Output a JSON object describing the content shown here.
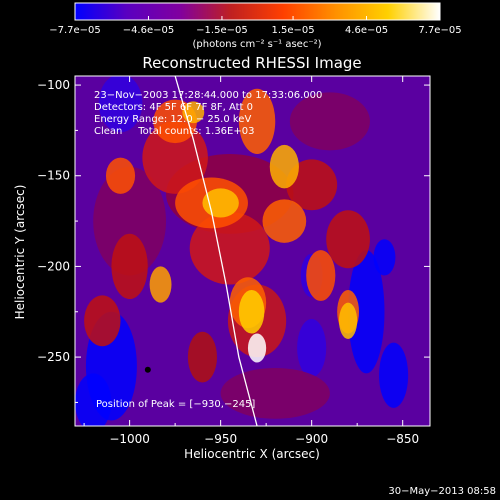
{
  "chart_data": {
    "type": "heatmap",
    "title": "Reconstructed RHESSI Image",
    "xlabel": "Heliocentric X (arcsec)",
    "ylabel": "Heliocentric Y (arcsec)",
    "xlim": [
      -1030,
      -835
    ],
    "ylim": [
      -288,
      -95
    ],
    "x_ticks": [
      -1000,
      -950,
      -900,
      -850
    ],
    "x_tick_labels": [
      "−1000",
      "−950",
      "−900",
      "−850"
    ],
    "y_ticks": [
      -100,
      -150,
      -200,
      -250
    ],
    "y_tick_labels": [
      "−100",
      "−150",
      "−200",
      "−250"
    ],
    "colorbar": {
      "range": [
        -7.7e-05,
        7.7e-05
      ],
      "tick_values": [
        -7.7e-05,
        -4.6e-05,
        -1.5e-05,
        1.5e-05,
        4.6e-05,
        7.7e-05
      ],
      "tick_labels": [
        "−7.7e−05",
        "−4.6e−05",
        "−1.5e−05",
        "1.5e−05",
        "4.6e−05",
        "7.7e−05"
      ],
      "unit_label": "(photons cm⁻² s⁻¹ asec⁻²)",
      "colors": [
        "#0000ff",
        "#5a00c0",
        "#8000a0",
        "#c02020",
        "#ff4000",
        "#ff9000",
        "#ffd000",
        "#ffffff"
      ]
    },
    "annotations": [
      "23−Nov−2003 17:28:44.000 to 17:33:06.000",
      "Detectors: 4F 5F 6F 7F 8F, Att 0",
      "Energy Range: 12.0 − 25.0 keV",
      "Clean     Total counts: 1.36E+03"
    ],
    "peak_label": "Position of Peak = [−930,−245]",
    "peak_position": [
      -930,
      -245
    ],
    "marker_position": [
      -990,
      -257
    ],
    "limb_curve": [
      [
        -975,
        -95
      ],
      [
        -965,
        -130
      ],
      [
        -955,
        -170
      ],
      [
        -947,
        -210
      ],
      [
        -940,
        -250
      ],
      [
        -930,
        -288
      ]
    ],
    "footer_date": "30−May−2013 08:58"
  }
}
